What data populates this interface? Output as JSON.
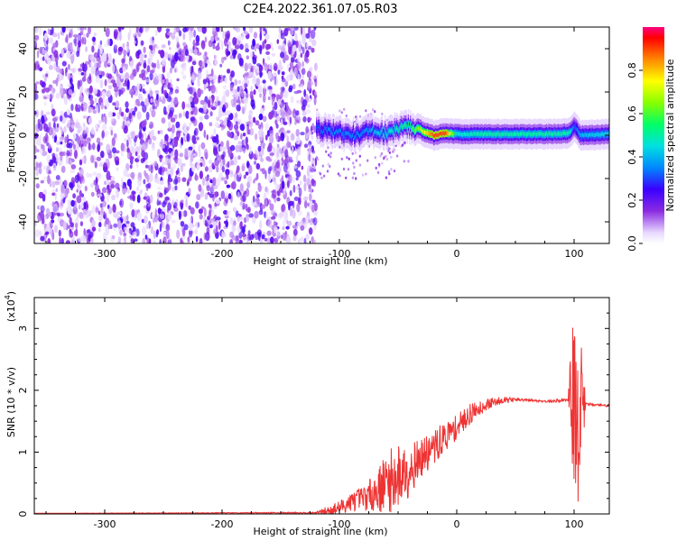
{
  "title": "C2E4.2022.361.07.05.R03",
  "chart_data": [
    {
      "type": "heatmap",
      "xlabel": "Height of straight line (km)",
      "ylabel": "Frequency (Hz)",
      "xlim": [
        -360,
        130
      ],
      "ylim": [
        -50,
        50
      ],
      "xticks": [
        -300,
        -200,
        -100,
        0,
        100
      ],
      "yticks": [
        -40,
        -20,
        0,
        20,
        40
      ],
      "colorbar": {
        "label": "Normalized spectral amplitude",
        "range": [
          0.0,
          1.0
        ],
        "ticks": [
          0.0,
          0.2,
          0.4,
          0.6,
          0.8
        ],
        "tick_labels": [
          "0.0",
          "0.2",
          "0.4",
          "0.6",
          "0.8"
        ]
      },
      "noise_region_x": [
        -360,
        -120
      ],
      "signal_ridge": {
        "x": [
          -120,
          -110,
          -100,
          -90,
          -80,
          -70,
          -60,
          -50,
          -40,
          -30,
          -20,
          -10,
          0,
          20,
          40,
          60,
          80,
          95,
          100,
          105,
          130
        ],
        "y": [
          3,
          2,
          1,
          0,
          1,
          2,
          1,
          3,
          4,
          2,
          0,
          1,
          0.5,
          0.5,
          0.5,
          0.5,
          0.5,
          1,
          4,
          0,
          0.5
        ],
        "amplitude": [
          0.3,
          0.35,
          0.35,
          0.35,
          0.35,
          0.4,
          0.45,
          0.5,
          0.55,
          0.7,
          0.9,
          0.9,
          0.45,
          0.5,
          0.5,
          0.5,
          0.5,
          0.5,
          0.3,
          0.4,
          0.45
        ]
      },
      "grid": false
    },
    {
      "type": "line",
      "xlabel": "Height of straight line (km)",
      "ylabel": "SNR (10 * v/v)",
      "yscale_label": "(x10",
      "yscale_exp": "4",
      "yscale_close": ")",
      "xlim": [
        -360,
        130
      ],
      "ylim": [
        0,
        3.5
      ],
      "xticks": [
        -300,
        -200,
        -100,
        0,
        100
      ],
      "yticks": [
        0,
        1,
        2,
        3
      ],
      "series": [
        {
          "color": "#ee3333",
          "envelope": {
            "x": [
              -360,
              -120,
              -110,
              -100,
              -90,
              -80,
              -70,
              -60,
              -50,
              -40,
              -30,
              -20,
              -10,
              0,
              10,
              20,
              30,
              40,
              60,
              80,
              95,
              98,
              102,
              106,
              110,
              130
            ],
            "y": [
              0.01,
              0.02,
              0.05,
              0.1,
              0.2,
              0.25,
              0.35,
              0.5,
              0.6,
              0.75,
              0.9,
              1.05,
              1.25,
              1.4,
              1.6,
              1.72,
              1.8,
              1.85,
              1.84,
              1.82,
              1.85,
              1.9,
              1.2,
              1.8,
              1.78,
              1.75
            ],
            "noise": [
              0,
              0.01,
              0.08,
              0.12,
              0.15,
              0.2,
              0.3,
              0.5,
              0.55,
              0.45,
              0.3,
              0.3,
              0.25,
              0.2,
              0.18,
              0.12,
              0.08,
              0.05,
              0.02,
              0.02,
              0.03,
              1.5,
              1.8,
              1.2,
              0.02,
              0.02
            ]
          }
        }
      ],
      "grid": false
    }
  ]
}
